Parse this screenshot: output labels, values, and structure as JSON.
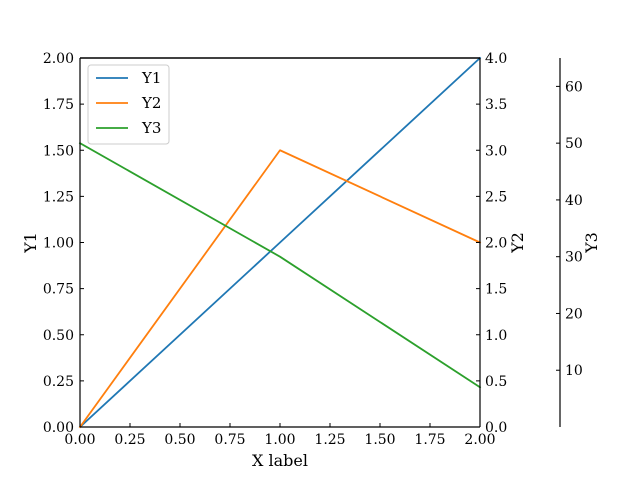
{
  "chart_data": {
    "type": "line",
    "xlabel": "X label",
    "x": [
      0,
      1,
      2
    ],
    "xlim": [
      0,
      2
    ],
    "xticks": [
      "0.00",
      "0.25",
      "0.50",
      "0.75",
      "1.00",
      "1.25",
      "1.50",
      "1.75",
      "2.00"
    ],
    "series": [
      {
        "name": "Y1",
        "axis": "y1",
        "color": "#1f77b4",
        "values": [
          0,
          1,
          2
        ]
      },
      {
        "name": "Y2",
        "axis": "y2",
        "color": "#ff7f0e",
        "values": [
          0,
          3,
          2
        ]
      },
      {
        "name": "Y3",
        "axis": "y3",
        "color": "#2ca02c",
        "values": [
          50,
          30,
          7
        ]
      }
    ],
    "y_axes": {
      "y1": {
        "label": "Y1",
        "lim": [
          0,
          2
        ],
        "ticks": [
          "0.00",
          "0.25",
          "0.50",
          "0.75",
          "1.00",
          "1.25",
          "1.50",
          "1.75",
          "2.00"
        ]
      },
      "y2": {
        "label": "Y2",
        "lim": [
          0,
          4
        ],
        "ticks": [
          "0.0",
          "0.5",
          "1.0",
          "1.5",
          "2.0",
          "2.5",
          "3.0",
          "3.5",
          "4.0"
        ]
      },
      "y3": {
        "label": "Y3",
        "lim": [
          0,
          65
        ],
        "ticks": [
          "10",
          "20",
          "30",
          "40",
          "50",
          "60"
        ]
      }
    },
    "legend": {
      "placement": "top-left",
      "entries": [
        "Y1",
        "Y2",
        "Y3"
      ]
    },
    "grid": false
  }
}
